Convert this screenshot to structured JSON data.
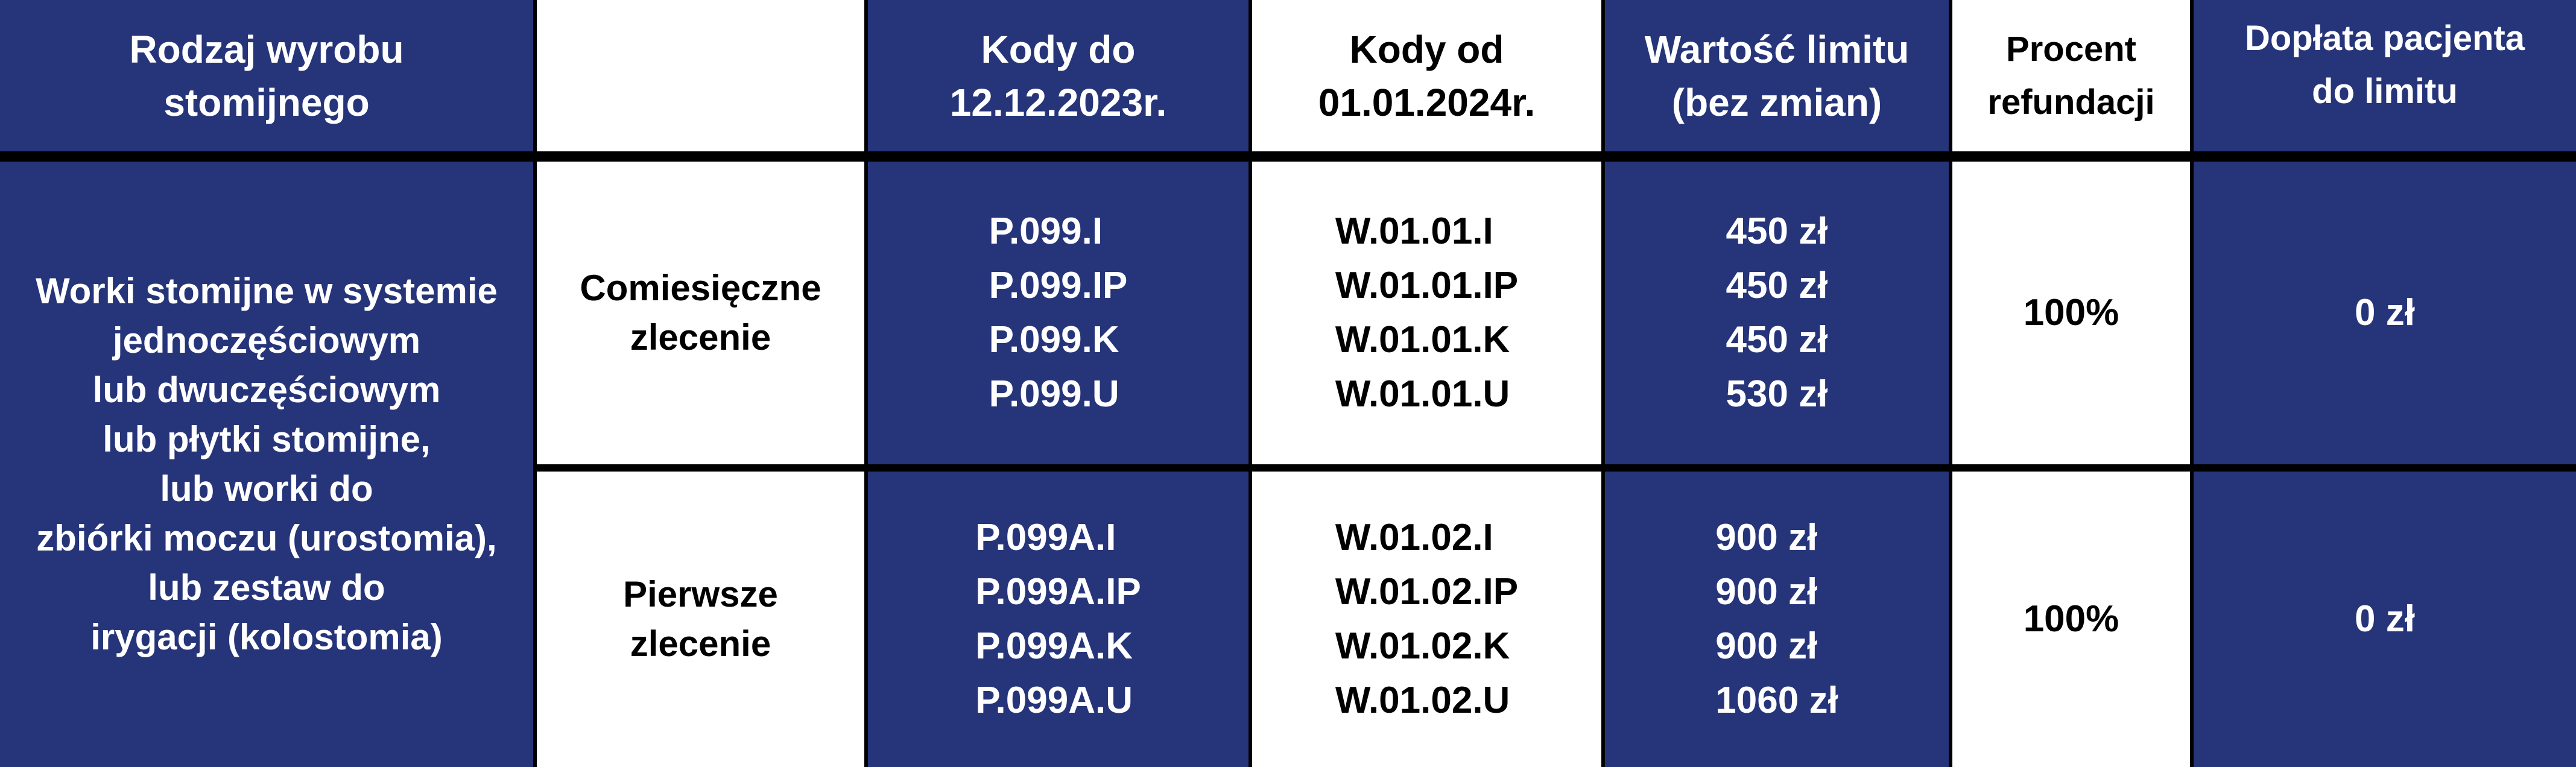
{
  "colors": {
    "navy": "#26357a",
    "white": "#ffffff",
    "border": "#000000"
  },
  "header": {
    "col1": [
      "Rodzaj wyrobu",
      "stomijnego"
    ],
    "col2": "",
    "col3": [
      "Kody do",
      "12.12.2023r."
    ],
    "col4": [
      "Kody od",
      "01.01.2024r."
    ],
    "col5": [
      "Wartość limitu",
      "(bez zmian)"
    ],
    "col6": [
      "Procent",
      "refundacji"
    ],
    "col7": [
      "Dopłata pacjenta",
      "do limitu"
    ]
  },
  "product": [
    "Worki stomijne w systemie",
    "jednoczęściowym",
    "lub dwuczęściowym",
    "lub płytki stomijne,",
    "lub worki do",
    "zbiórki moczu (urostomia),",
    "lub zestaw do",
    "irygacji (kolostomia)"
  ],
  "rows": [
    {
      "order": [
        "Comiesięczne",
        "zlecenie"
      ],
      "old_codes": [
        "P.099.I",
        "P.099.IP",
        "P.099.K",
        "P.099.U"
      ],
      "new_codes": [
        "W.01.01.I",
        "W.01.01.IP",
        "W.01.01.K",
        "W.01.01.U"
      ],
      "limits": [
        "450 zł",
        "450 zł",
        "450 zł",
        "530 zł"
      ],
      "refund": "100%",
      "copay": "0 zł"
    },
    {
      "order": [
        "Pierwsze",
        "zlecenie"
      ],
      "old_codes": [
        "P.099A.I",
        "P.099A.IP",
        "P.099A.K",
        "P.099A.U"
      ],
      "new_codes": [
        "W.01.02.I",
        "W.01.02.IP",
        "W.01.02.K",
        "W.01.02.U"
      ],
      "limits": [
        "900 zł",
        "900 zł",
        "900 zł",
        "1060 zł"
      ],
      "refund": "100%",
      "copay": "0 zł"
    }
  ]
}
